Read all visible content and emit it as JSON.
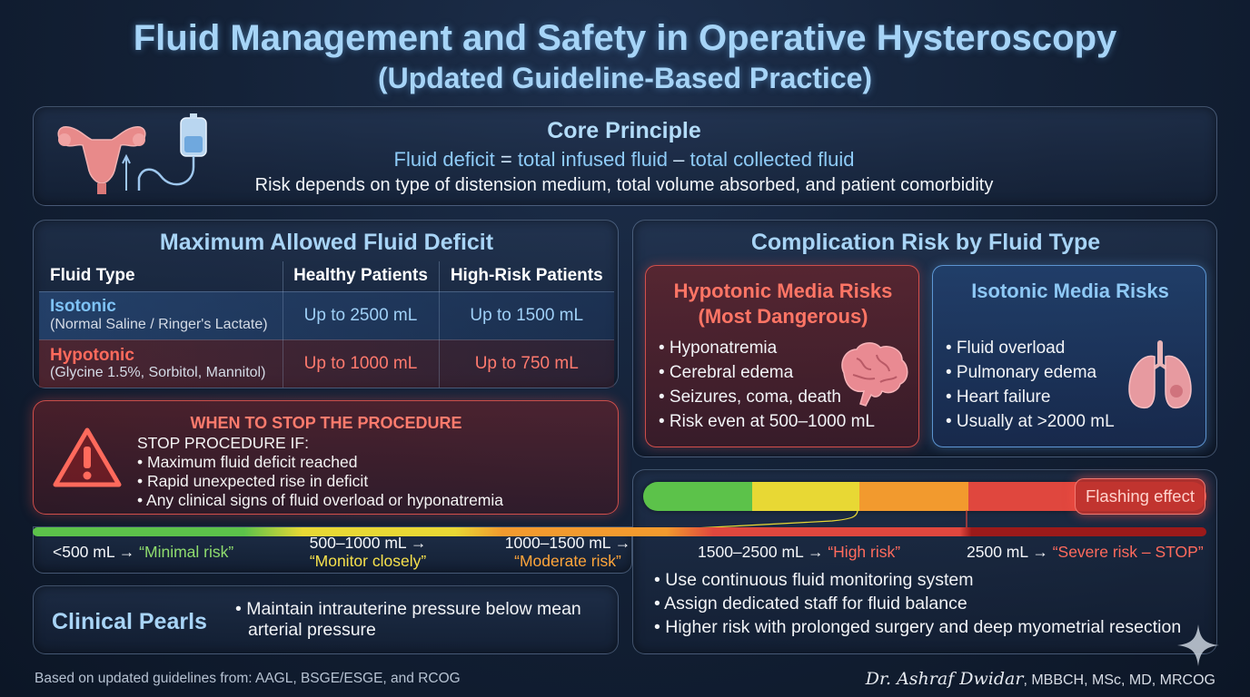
{
  "header": {
    "title": "Fluid Management and Safety in Operative Hysteroscopy",
    "subtitle": "(Updated Guideline-Based Practice)"
  },
  "core": {
    "heading": "Core Principle",
    "formula_term1": "Fluid deficit",
    "formula_op1": " = ",
    "formula_term2": "total infused fluid",
    "formula_op2": " – ",
    "formula_term3": "total collected fluid",
    "risk_line": "Risk depends on type of distension medium, total volume absorbed, and patient comorbidity"
  },
  "deficit": {
    "heading": "Maximum Allowed Fluid Deficit",
    "columns": [
      "Fluid Type",
      "Healthy Patients",
      "High-Risk Patients"
    ],
    "rows": [
      {
        "type": "Isotonic",
        "examples": "(Normal Saline / Ringer's Lactate)",
        "healthy": "Up to 2500 mL",
        "high_risk": "Up to 1500 mL"
      },
      {
        "type": "Hypotonic",
        "examples": "(Glycine 1.5%, Sorbitol, Mannitol)",
        "healthy": "Up to 1000 mL",
        "high_risk": "Up to 750 mL"
      }
    ]
  },
  "stop": {
    "heading": "WHEN TO STOP THE PROCEDURE",
    "intro": "STOP PROCEDURE IF:",
    "items": [
      "• Maximum fluid deficit reached",
      "• Rapid unexpected rise in deficit",
      "• Any clinical signs of fluid overload or hyponatremia"
    ]
  },
  "complication": {
    "heading": "Complication Risk by Fluid Type",
    "hypotonic": {
      "heading_line1": "Hypotonic Media Risks",
      "heading_line2": "(Most Dangerous)",
      "items": [
        "• Hyponatremia",
        "• Cerebral edema",
        "• Seizures, coma, death",
        "• Risk even at 500–1000 mL"
      ]
    },
    "isotonic": {
      "heading": "Isotonic Media Risks",
      "items": [
        "• Fluid overload",
        "• Pulmonary edema",
        "• Heart failure",
        "• Usually at >2000 mL"
      ]
    }
  },
  "scale": {
    "flashing_label": "Flashing effect",
    "colors": {
      "green": "#5cc24a",
      "yellow": "#e8d834",
      "orange": "#f29a2e",
      "red": "#e0473e",
      "dark_red": "#9c1a1a"
    },
    "labels": [
      {
        "range": "<500 mL → ",
        "risk": "“Minimal risk”"
      },
      {
        "range": "500–1000 mL →",
        "risk": "“Monitor closely”"
      },
      {
        "range": "1000–1500 mL →",
        "risk": "“Moderate risk”"
      },
      {
        "range": "1500–2500 mL → ",
        "risk": "“High risk”"
      },
      {
        "range": "2500 mL → ",
        "risk": "“Severe risk – STOP”"
      }
    ]
  },
  "monitoring": {
    "items": [
      "• Use continuous fluid monitoring system",
      "• Assign dedicated staff for fluid balance",
      "• Higher risk with prolonged surgery and deep myometrial resection"
    ]
  },
  "pearls": {
    "heading": "Clinical Pearls",
    "line1": "• Maintain intrauterine pressure below mean",
    "line2": "arterial pressure"
  },
  "footer": {
    "source": "Based on updated guidelines from: AAGL, BSGE/ESGE, and RCOG",
    "author_name": "Dr. Ashraf Dwidar",
    "author_creds": ", MBBCH, MSc, MD, MRCOG"
  }
}
